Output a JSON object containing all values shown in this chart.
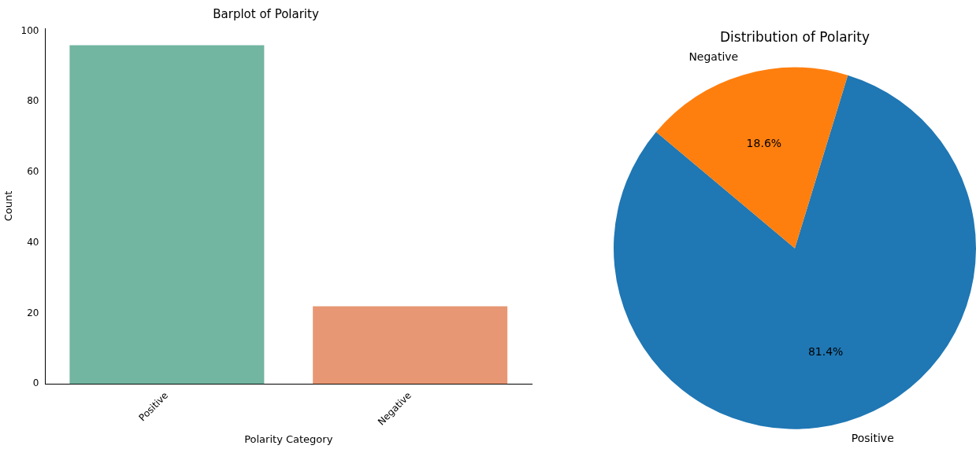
{
  "chart_data": [
    {
      "type": "bar",
      "title": "Barplot of Polarity",
      "xlabel": "Polarity Category",
      "ylabel": "Count",
      "categories": [
        "Positive",
        "Negative"
      ],
      "values": [
        96,
        22
      ],
      "colors": [
        "#72b5a0",
        "#e89774"
      ],
      "ylim": [
        0,
        100.8
      ],
      "yticks": [
        0,
        20,
        40,
        60,
        80,
        100
      ],
      "grid": false,
      "legend": false
    },
    {
      "type": "pie",
      "title": "Distribution of Polarity",
      "categories": [
        "Positive",
        "Negative"
      ],
      "values": [
        81.4,
        18.6
      ],
      "colors": [
        "#1f77b4",
        "#ff7f0e"
      ],
      "value_labels": [
        "81.4%",
        "18.6%"
      ],
      "legend": false
    }
  ]
}
